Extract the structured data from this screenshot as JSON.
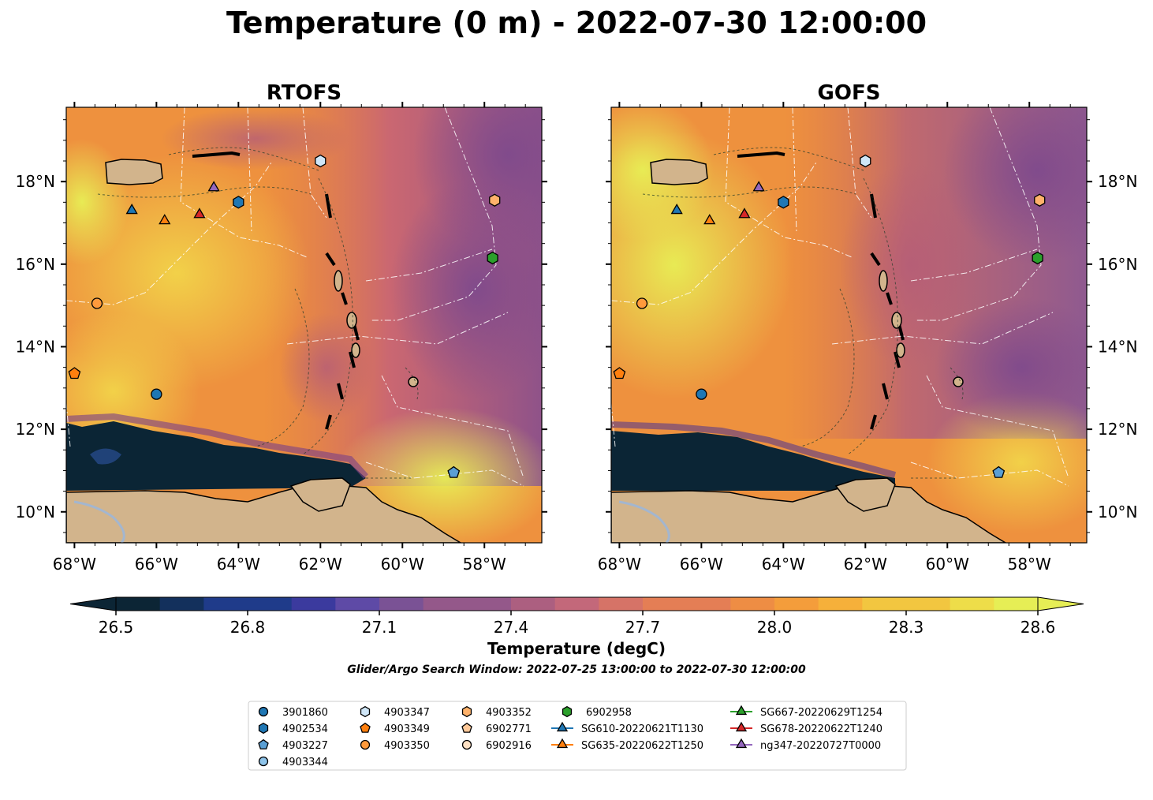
{
  "title": "Temperature (0 m) - 2022-07-30 12:00:00",
  "panels": [
    {
      "title": "RTOFS"
    },
    {
      "title": "GOFS"
    }
  ],
  "axes": {
    "lon_ticks": [
      "68°W",
      "66°W",
      "64°W",
      "62°W",
      "60°W",
      "58°W"
    ],
    "lat_ticks": [
      "18°N",
      "16°N",
      "14°N",
      "12°N",
      "10°N"
    ]
  },
  "colorbar": {
    "ticks": [
      "26.5",
      "26.8",
      "27.1",
      "27.4",
      "27.7",
      "28.0",
      "28.3",
      "28.6"
    ],
    "label": "Temperature (degC)",
    "min": 26.5,
    "max": 28.6,
    "step": 0.1
  },
  "search_window": "Glider/Argo Search Window: 2022-07-25 13:00:00 to 2022-07-30 12:00:00",
  "legend": {
    "columns": [
      [
        {
          "label": "3901860",
          "marker": "circle",
          "color": "#1f77b4"
        },
        {
          "label": "4902534",
          "marker": "hexagon",
          "color": "#1f77b4"
        },
        {
          "label": "4903227",
          "marker": "pentagon",
          "color": "#5a9fd4"
        },
        {
          "label": "4903344",
          "marker": "circle",
          "color": "#8ec4ea"
        }
      ],
      [
        {
          "label": "4903347",
          "marker": "hexagon",
          "color": "#cfe6f7"
        },
        {
          "label": "4903349",
          "marker": "pentagon",
          "color": "#ff7f0e"
        },
        {
          "label": "4903350",
          "marker": "circle",
          "color": "#ff9a3c"
        }
      ],
      [
        {
          "label": "4903352",
          "marker": "hexagon",
          "color": "#ffb26b"
        },
        {
          "label": "6902771",
          "marker": "pentagon",
          "color": "#ffc999"
        },
        {
          "label": "6902916",
          "marker": "circle",
          "color": "#ffe1c4"
        }
      ],
      [
        {
          "label": "6902958",
          "marker": "hexagon",
          "color": "#2ca02c"
        },
        {
          "label": "SG610-20220621T1130",
          "marker": "triangle",
          "color": "#1f77b4"
        },
        {
          "label": "SG635-20220622T1250",
          "marker": "triangle",
          "color": "#ff7f0e"
        }
      ],
      [
        {
          "label": "SG667-20220629T1254",
          "marker": "triangle",
          "color": "#2ca02c"
        },
        {
          "label": "SG678-20220622T1240",
          "marker": "triangle",
          "color": "#d62728"
        },
        {
          "label": "ng347-20220727T0000",
          "marker": "triangle",
          "color": "#9467bd"
        }
      ]
    ]
  },
  "observations": [
    {
      "id": "3901860",
      "marker": "circle",
      "color": "#1f77b4",
      "lon": -66.0,
      "lat": 12.85
    },
    {
      "id": "4902534",
      "marker": "hexagon",
      "color": "#1f77b4",
      "lon": -64.0,
      "lat": 17.5
    },
    {
      "id": "4903227",
      "marker": "pentagon",
      "color": "#5a9fd4",
      "lon": -58.75,
      "lat": 10.95
    },
    {
      "id": "4903347",
      "marker": "hexagon",
      "color": "#cfe6f7",
      "lon": -62.0,
      "lat": 18.5
    },
    {
      "id": "4903349",
      "marker": "pentagon",
      "color": "#ff7f0e",
      "lon": -68.0,
      "lat": 13.35
    },
    {
      "id": "4903350",
      "marker": "circle",
      "color": "#ff9a3c",
      "lon": -67.45,
      "lat": 15.05
    },
    {
      "id": "4903352",
      "marker": "hexagon",
      "color": "#ffb26b",
      "lon": -57.75,
      "lat": 17.55
    },
    {
      "id": "6902958",
      "marker": "hexagon",
      "color": "#2ca02c",
      "lon": -57.8,
      "lat": 16.15
    },
    {
      "id": "SG610-20220621T1130",
      "marker": "triangle",
      "color": "#1f77b4",
      "lon": -66.6,
      "lat": 17.3
    },
    {
      "id": "SG635-20220622T1250",
      "marker": "triangle",
      "color": "#ff7f0e",
      "lon": -65.8,
      "lat": 17.05
    },
    {
      "id": "SG678-20220622T1240",
      "marker": "triangle",
      "color": "#d62728",
      "lon": -64.95,
      "lat": 17.2
    },
    {
      "id": "ng347-20220727T0000",
      "marker": "triangle",
      "color": "#9467bd",
      "lon": -64.6,
      "lat": 17.85
    }
  ]
}
